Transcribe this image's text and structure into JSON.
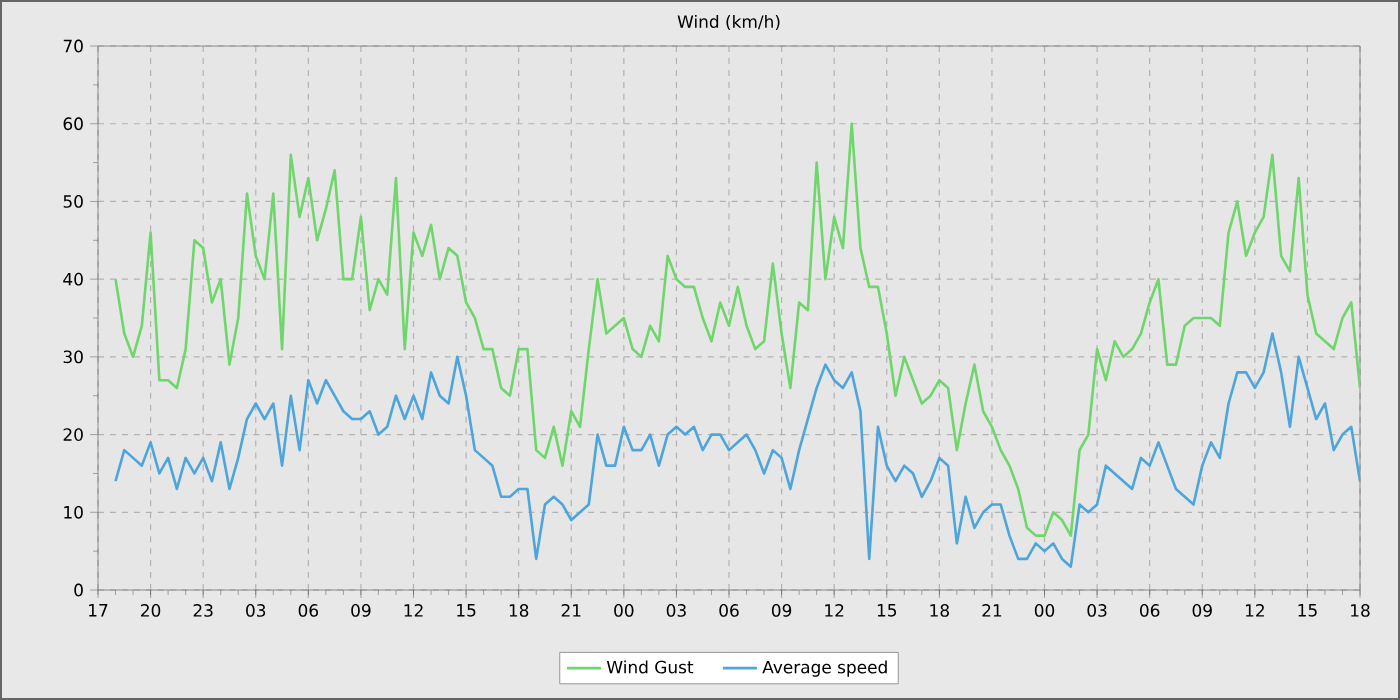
{
  "chart_data": {
    "type": "line",
    "title": "Wind (km/h)",
    "categories": [
      "17",
      null,
      null,
      null,
      null,
      null,
      "20",
      null,
      null,
      null,
      null,
      null,
      "23",
      null,
      null,
      null,
      null,
      null,
      "03",
      null,
      null,
      null,
      null,
      null,
      "06",
      null,
      null,
      null,
      null,
      null,
      "09",
      null,
      null,
      null,
      null,
      null,
      "12",
      null,
      null,
      null,
      null,
      null,
      "15",
      null,
      null,
      null,
      null,
      null,
      "18",
      null,
      null,
      null,
      null,
      null,
      "21",
      null,
      null,
      null,
      null,
      null,
      "00",
      null,
      null,
      null,
      null,
      null,
      "03",
      null,
      null,
      null,
      null,
      null,
      "06",
      null,
      null,
      null,
      null,
      null,
      "09",
      null,
      null,
      null,
      null,
      null,
      "12",
      null,
      null,
      null,
      null,
      null,
      "15",
      null,
      null,
      null,
      null,
      null,
      "18",
      null,
      null,
      null,
      null,
      null,
      "21",
      null,
      null,
      null,
      null,
      null,
      "00",
      null,
      null,
      null,
      null,
      null,
      "03",
      null,
      null,
      null,
      null,
      null,
      "06",
      null,
      null,
      null,
      null,
      null,
      "09",
      null,
      null,
      null,
      null,
      null,
      "12",
      null,
      null,
      null,
      null,
      null,
      "15",
      null,
      null,
      null,
      null,
      null,
      "18"
    ],
    "ylim": [
      0,
      70
    ],
    "yticks": [
      0,
      10,
      20,
      30,
      40,
      50,
      60,
      70
    ],
    "grid": true,
    "legend": "bottom",
    "series": [
      {
        "name": "Wind Gust",
        "color": "#6fd66b",
        "values": [
          null,
          null,
          40,
          33,
          30,
          34,
          46,
          27,
          27,
          26,
          31,
          45,
          44,
          37,
          40,
          29,
          35,
          51,
          43,
          40,
          51,
          31,
          56,
          48,
          53,
          45,
          49,
          54,
          40,
          40,
          48,
          36,
          40,
          38,
          53,
          31,
          46,
          43,
          47,
          40,
          44,
          43,
          37,
          35,
          31,
          31,
          26,
          25,
          31,
          31,
          18,
          17,
          21,
          16,
          23,
          21,
          31,
          40,
          33,
          34,
          35,
          31,
          30,
          34,
          32,
          43,
          40,
          39,
          39,
          35,
          32,
          37,
          34,
          39,
          34,
          31,
          32,
          42,
          33,
          26,
          37,
          36,
          55,
          40,
          48,
          44,
          60,
          44,
          39,
          39,
          33,
          25,
          30,
          27,
          24,
          25,
          27,
          26,
          18,
          24,
          29,
          23,
          21,
          18,
          16,
          13,
          8,
          7,
          7,
          10,
          9,
          7,
          18,
          20,
          31,
          27,
          32,
          30,
          31,
          33,
          37,
          40,
          29,
          29,
          34,
          35,
          35,
          35,
          34,
          46,
          50,
          43,
          46,
          48,
          56,
          43,
          41,
          53,
          38,
          33,
          32,
          31,
          35,
          37,
          26
        ]
      },
      {
        "name": "Average speed",
        "color": "#4ca5db",
        "values": [
          null,
          null,
          14,
          18,
          17,
          16,
          19,
          15,
          17,
          13,
          17,
          15,
          17,
          14,
          19,
          13,
          17,
          22,
          24,
          22,
          24,
          16,
          25,
          18,
          27,
          24,
          27,
          25,
          23,
          22,
          22,
          23,
          20,
          21,
          25,
          22,
          25,
          22,
          28,
          25,
          24,
          30,
          25,
          18,
          17,
          16,
          12,
          12,
          13,
          13,
          4,
          11,
          12,
          11,
          9,
          10,
          11,
          20,
          16,
          16,
          21,
          18,
          18,
          20,
          16,
          20,
          21,
          20,
          21,
          18,
          20,
          20,
          18,
          19,
          20,
          18,
          15,
          18,
          17,
          13,
          18,
          22,
          26,
          29,
          27,
          26,
          28,
          23,
          4,
          21,
          16,
          14,
          16,
          15,
          12,
          14,
          17,
          16,
          6,
          12,
          8,
          10,
          11,
          11,
          7,
          4,
          4,
          6,
          5,
          6,
          4,
          3,
          11,
          10,
          11,
          16,
          15,
          14,
          13,
          17,
          16,
          19,
          16,
          13,
          12,
          11,
          16,
          19,
          17,
          24,
          28,
          28,
          26,
          28,
          33,
          28,
          21,
          30,
          26,
          22,
          24,
          18,
          20,
          21,
          14
        ]
      }
    ]
  }
}
